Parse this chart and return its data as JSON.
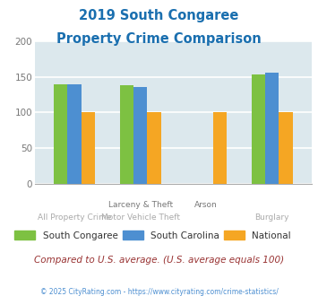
{
  "title_line1": "2019 South Congaree",
  "title_line2": "Property Crime Comparison",
  "title_color": "#1a6faf",
  "categories_top": [
    "",
    "Larceny & Theft",
    "Arson",
    ""
  ],
  "categories_bot": [
    "All Property Crime",
    "Motor Vehicle Theft",
    "",
    "Burglary"
  ],
  "series": {
    "South Congaree": {
      "color": "#7dc142",
      "values": [
        140,
        138,
        0,
        153
      ]
    },
    "South Carolina": {
      "color": "#4d8fd1",
      "values": [
        140,
        136,
        0,
        156
      ]
    },
    "National": {
      "color": "#f5a623",
      "values": [
        100,
        100,
        100,
        100
      ]
    }
  },
  "ylim": [
    0,
    200
  ],
  "yticks": [
    0,
    50,
    100,
    150,
    200
  ],
  "plot_bg_color": "#dce8ed",
  "fig_bg_color": "#ffffff",
  "note": "Compared to U.S. average. (U.S. average equals 100)",
  "note_color": "#993333",
  "footer": "© 2025 CityRating.com - https://www.cityrating.com/crime-statistics/",
  "footer_color": "#4d8fd1",
  "grid_color": "#ffffff",
  "bar_width": 0.21,
  "group_positions": [
    1,
    2,
    3,
    4
  ],
  "series_names": [
    "South Congaree",
    "South Carolina",
    "National"
  ]
}
